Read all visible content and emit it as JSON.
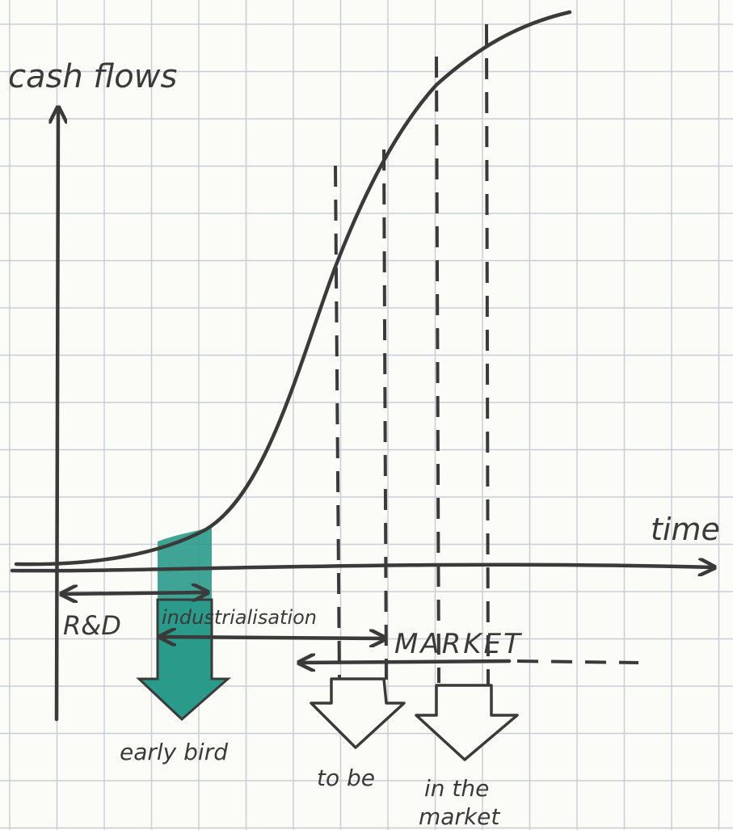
{
  "axes": {
    "y_label": "cash flows",
    "x_label": "time"
  },
  "phases": {
    "rd": "R&D",
    "industrialisation": "industrialisation",
    "market": "MARKET"
  },
  "entries": {
    "early_bird": "early bird",
    "to_be": "to be",
    "in_the_market": [
      "in the",
      "market"
    ]
  }
}
